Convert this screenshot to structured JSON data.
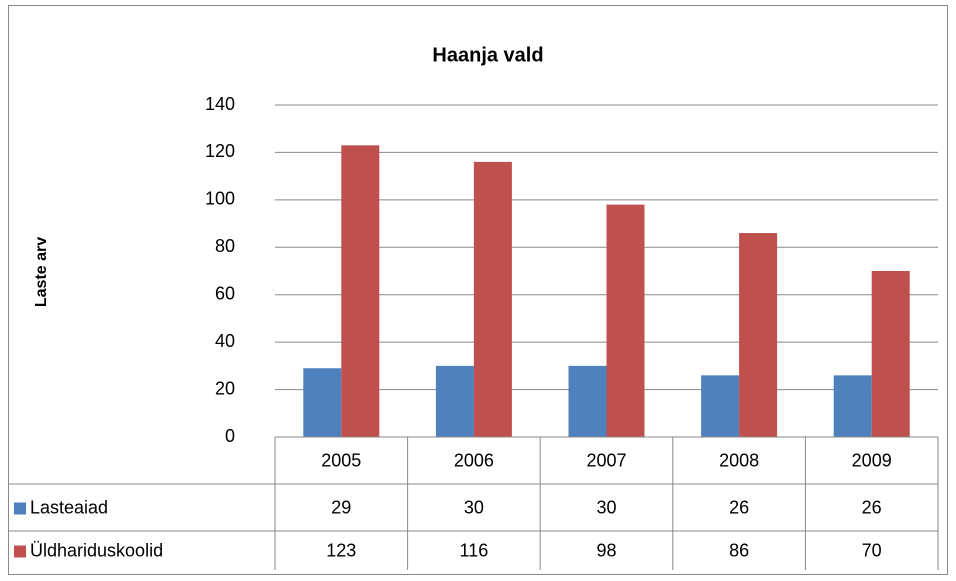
{
  "chart_data": {
    "type": "bar",
    "title": "Haanja vald",
    "y_label": "Laste arv",
    "categories": [
      "2005",
      "2006",
      "2007",
      "2008",
      "2009"
    ],
    "series": [
      {
        "name": "Lasteaiad",
        "color": "#4f81bd",
        "values": [
          29,
          30,
          30,
          26,
          26
        ]
      },
      {
        "name": "Üldhariduskoolid",
        "color": "#c0504d",
        "values": [
          123,
          116,
          98,
          86,
          70
        ]
      }
    ],
    "ylim": [
      0,
      140
    ],
    "yticks": [
      0,
      20,
      40,
      60,
      80,
      100,
      120,
      140
    ],
    "grid": true,
    "data_table": true
  }
}
